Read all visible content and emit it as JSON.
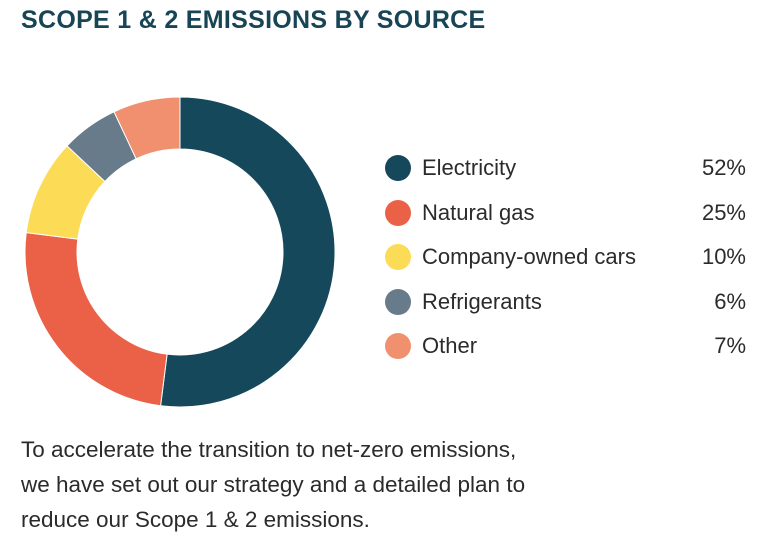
{
  "title": "SCOPE 1 & 2 EMISSIONS BY SOURCE",
  "chart_data": {
    "type": "pie",
    "variant": "donut",
    "title": "SCOPE 1 & 2 EMISSIONS BY SOURCE",
    "legend_placement": "right",
    "categories": [
      "Electricity",
      "Natural gas",
      "Company-owned cars",
      "Refrigerants",
      "Other"
    ],
    "values": [
      52,
      25,
      10,
      6,
      7
    ],
    "value_labels": [
      "52%",
      "25%",
      "10%",
      "6%",
      "7%"
    ],
    "colors": [
      "#14485a",
      "#ea6148",
      "#fcdc56",
      "#677b8a",
      "#f1906f"
    ]
  },
  "caption": {
    "lines": [
      "To accelerate the transition to net-zero emissions,",
      "we have set out our strategy and a detailed plan to",
      "reduce our Scope 1 & 2 emissions."
    ]
  }
}
